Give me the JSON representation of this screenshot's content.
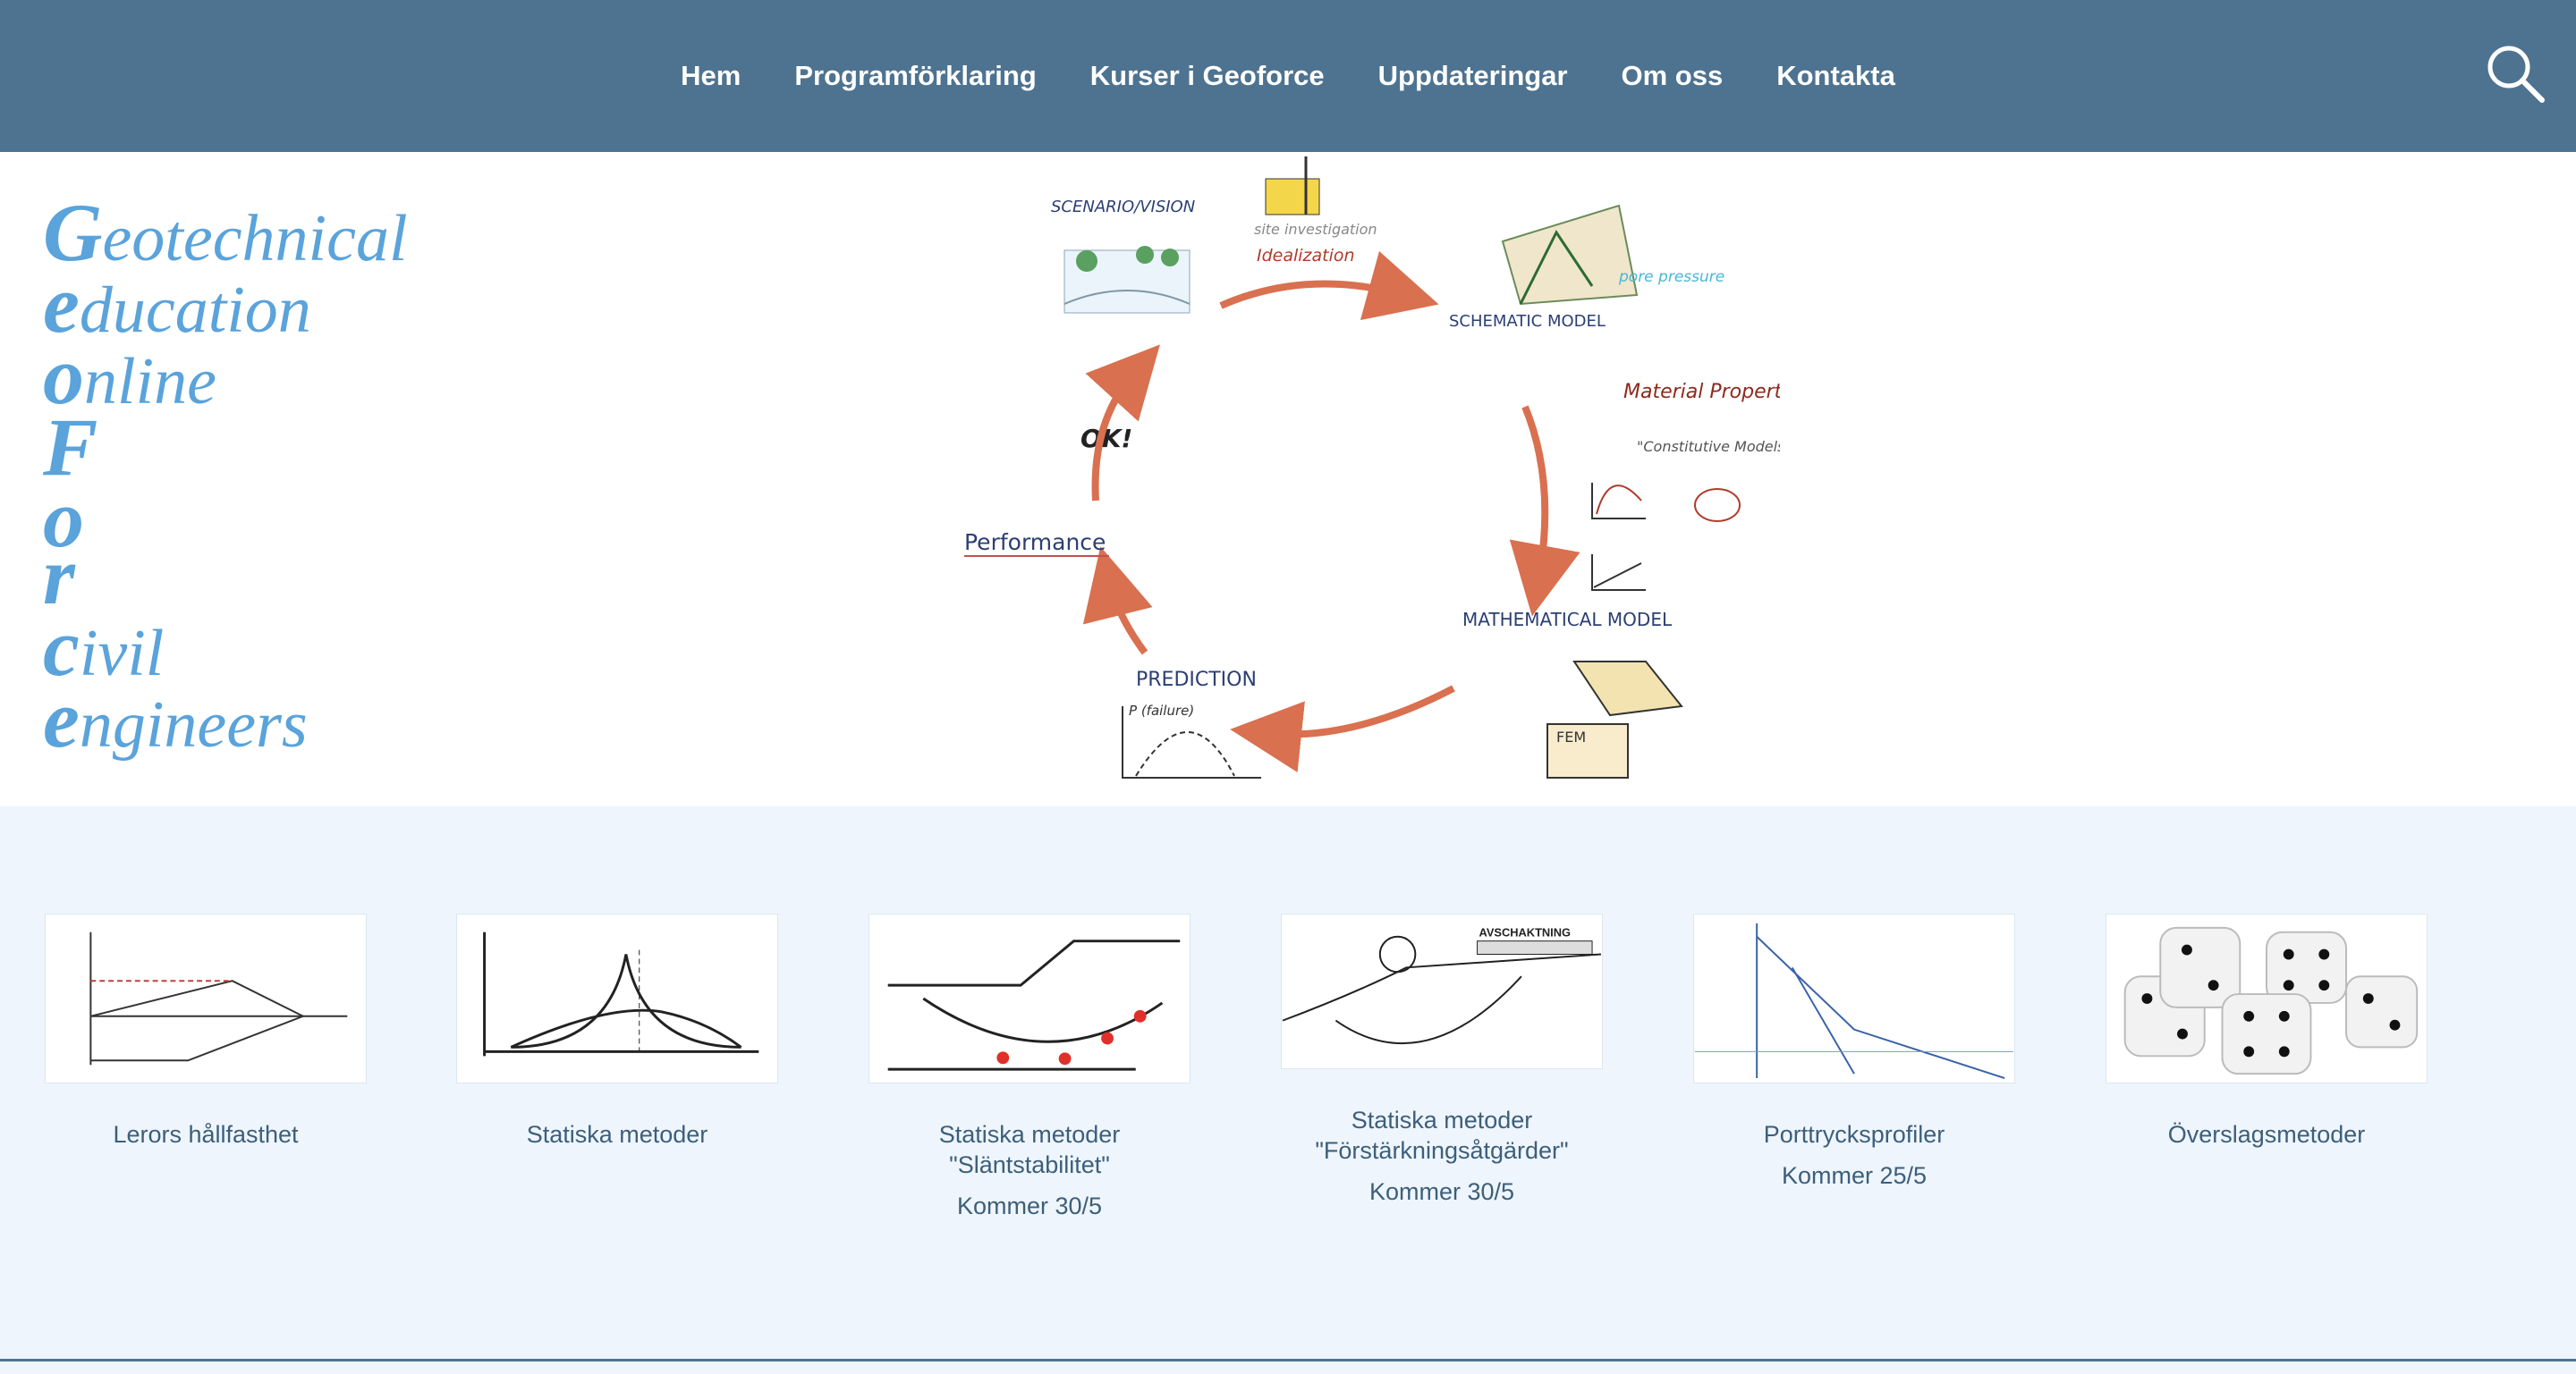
{
  "nav": {
    "items": [
      {
        "label": "Hem"
      },
      {
        "label": "Programförklaring"
      },
      {
        "label": "Kurser i Geoforce"
      },
      {
        "label": "Uppdateringar"
      },
      {
        "label": "Om oss"
      },
      {
        "label": "Kontakta"
      }
    ],
    "search_icon": "search-icon"
  },
  "hero": {
    "logo_lines": [
      {
        "initial": "G",
        "rest": "eotechnical"
      },
      {
        "initial": "e",
        "rest": "ducation"
      },
      {
        "initial": "o",
        "rest": "nline"
      },
      {
        "initial": "F",
        "rest": ""
      },
      {
        "initial": "o",
        "rest": ""
      },
      {
        "initial": "r",
        "rest": ""
      },
      {
        "initial": "c",
        "rest": "ivil"
      },
      {
        "initial": "e",
        "rest": "ngineers"
      }
    ],
    "cycle": {
      "scenario": "SCENARIO/VISION",
      "site_investigation": "site investigation",
      "idealization": "Idealization",
      "schematic_model": "SCHEMATIC MODEL",
      "pore_pressure": "pore pressure",
      "material_properties": "Material Properties",
      "constitutive_models": "\"Constitutive Models\"",
      "mathematical_model": "MATHEMATICAL MODEL",
      "fem": "FEM",
      "prediction": "PREDICTION",
      "p_failure": "P (failure)",
      "ok": "OK!",
      "performance": "Performance"
    }
  },
  "cards": [
    {
      "title": "Lerors hållfasthet",
      "sub": ""
    },
    {
      "title": "Statiska metoder",
      "sub": ""
    },
    {
      "title": "Statiska metoder \"Släntstabilitet\"",
      "sub": "Kommer 30/5"
    },
    {
      "title": "Statiska metoder \"Förstärkningsåtgärder\"",
      "sub": "Kommer 30/5"
    },
    {
      "title": "Porttrycksprofiler",
      "sub": "Kommer 25/5"
    },
    {
      "title": "Överslagsmetoder",
      "sub": ""
    }
  ],
  "thumb_labels": {
    "avschaktning": "AVSCHAKTNING"
  },
  "colors": {
    "header": "#4e7390",
    "logo": "#5aa3db",
    "card_area": "#eef5fd",
    "card_text": "#3d5f7a",
    "arrow": "#d9704f"
  }
}
